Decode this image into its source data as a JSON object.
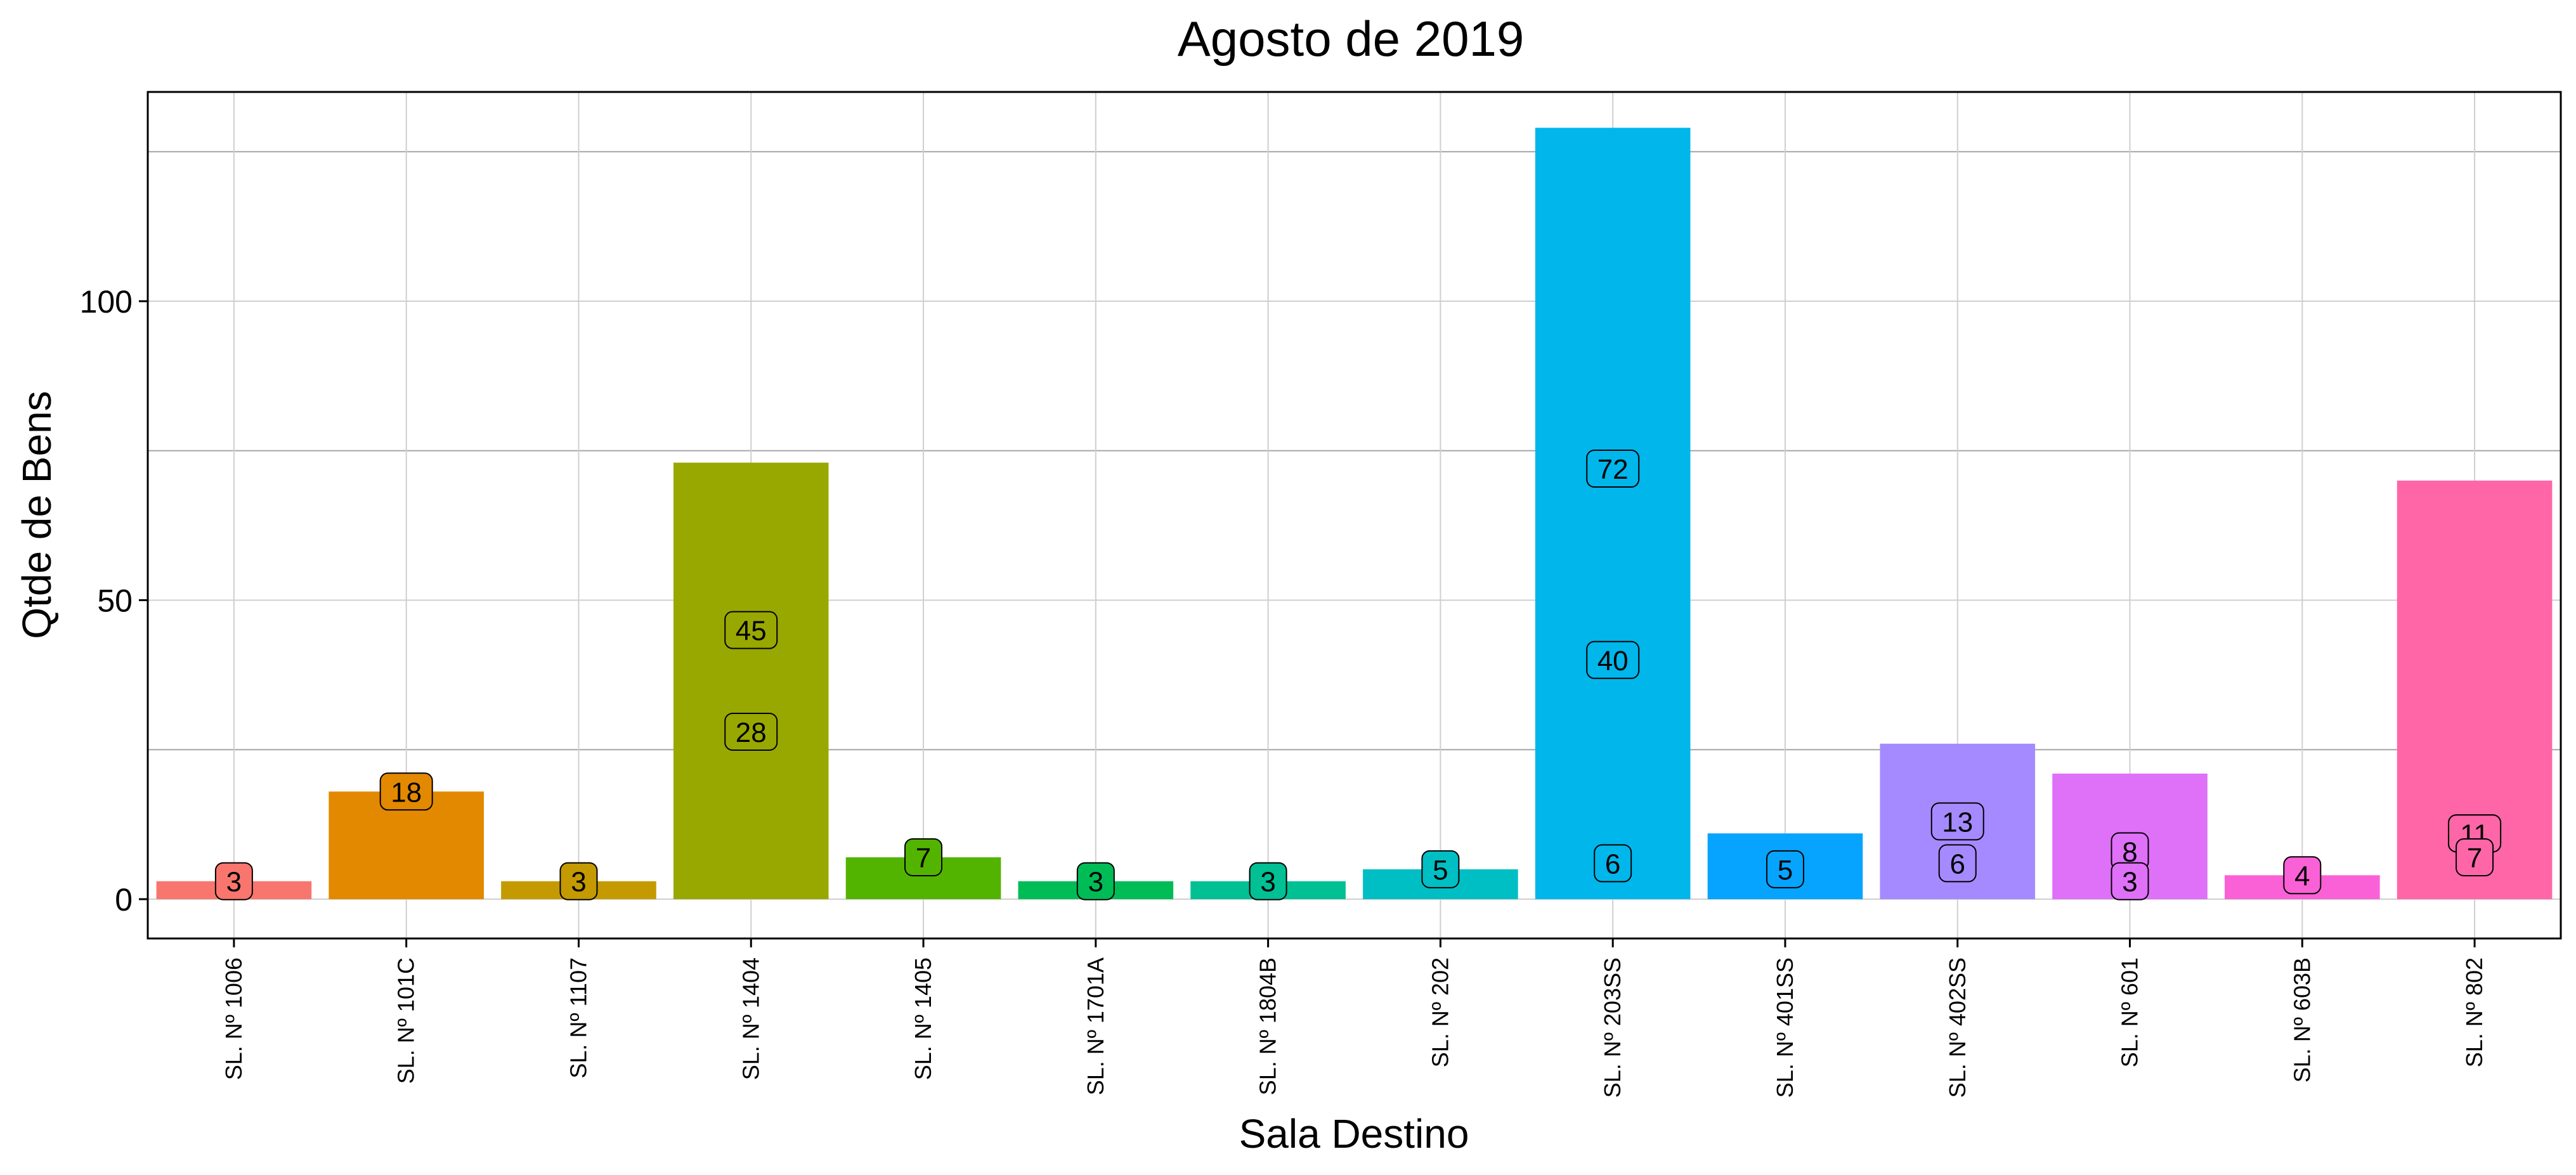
{
  "chart_data": {
    "type": "bar",
    "title": "Agosto  de  2019",
    "xlabel": "Sala Destino",
    "ylabel": "Qtde de Bens",
    "ylim": [
      -6,
      136
    ],
    "yticks": [
      0,
      50,
      100
    ],
    "grid": true,
    "legend": "none",
    "categories": [
      "SL. Nº 1006",
      "SL. Nº 101C",
      "SL. Nº 1107",
      "SL. Nº 1404",
      "SL. Nº 1405",
      "SL. Nº 1701A",
      "SL. Nº 1804B",
      "SL. Nº 202",
      "SL. Nº 203SS",
      "SL. Nº 401SS",
      "SL. Nº 402SS",
      "SL. Nº 601",
      "SL. Nº 603B",
      "SL. Nº 802"
    ],
    "values": [
      3,
      18,
      3,
      73,
      7,
      3,
      3,
      5,
      129,
      11,
      26,
      21,
      4,
      70
    ],
    "colors": [
      "#F8766D",
      "#E38900",
      "#C49A00",
      "#99A800",
      "#53B400",
      "#00BC56",
      "#00C094",
      "#00BFC4",
      "#00B6EB",
      "#06A4FF",
      "#A58AFF",
      "#DF70F8",
      "#FB61D7",
      "#FF66A8"
    ],
    "data_labels": [
      {
        "category": "SL. Nº 1006",
        "values": [
          "3"
        ]
      },
      {
        "category": "SL. Nº 101C",
        "values": [
          "18"
        ]
      },
      {
        "category": "SL. Nº 1107",
        "values": [
          "3"
        ]
      },
      {
        "category": "SL. Nº 1404",
        "values": [
          "45",
          "28"
        ]
      },
      {
        "category": "SL. Nº 1405",
        "values": [
          "7"
        ]
      },
      {
        "category": "SL. Nº 1701A",
        "values": [
          "3"
        ]
      },
      {
        "category": "SL. Nº 1804B",
        "values": [
          "3"
        ]
      },
      {
        "category": "SL. Nº 202",
        "values": [
          "5"
        ]
      },
      {
        "category": "SL. Nº 203SS",
        "values": [
          "72",
          "40",
          "6"
        ]
      },
      {
        "category": "SL. Nº 401SS",
        "values": [
          "5"
        ]
      },
      {
        "category": "SL. Nº 402SS",
        "values": [
          "13",
          "6"
        ]
      },
      {
        "category": "SL. Nº 601",
        "values": [
          "8",
          "3"
        ]
      },
      {
        "category": "SL. Nº 603B",
        "values": [
          "4"
        ]
      },
      {
        "category": "SL. Nº 802",
        "values": [
          "11",
          "11",
          "7"
        ]
      }
    ]
  }
}
